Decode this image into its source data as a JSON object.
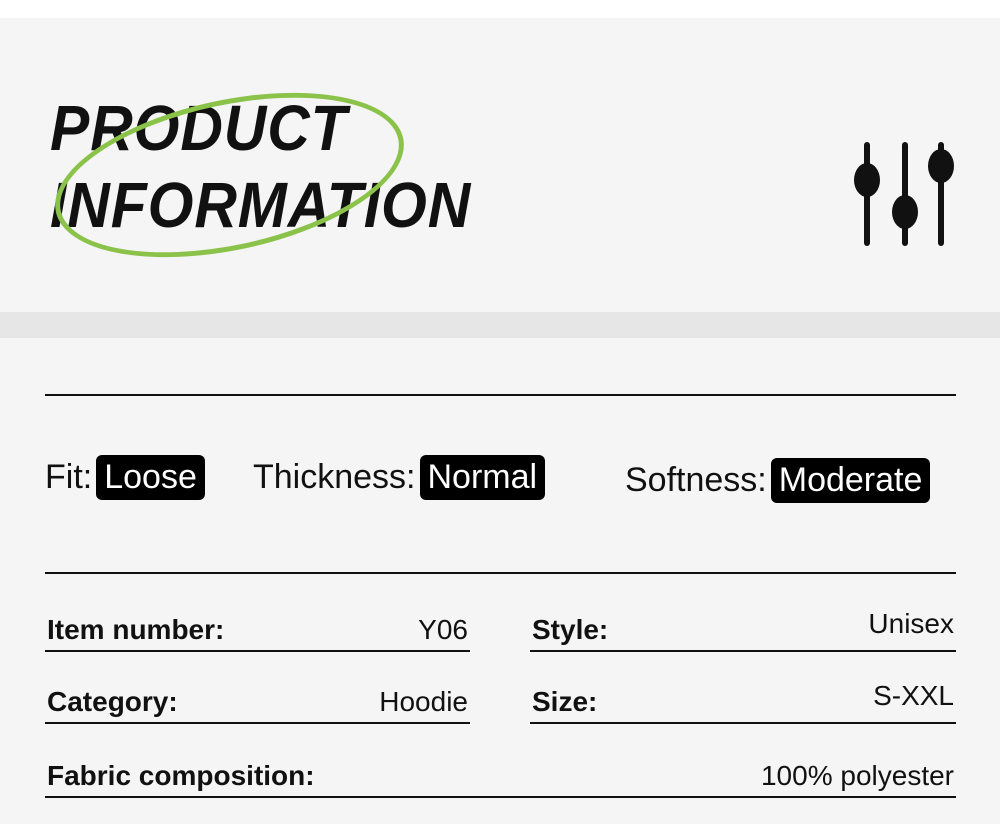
{
  "header": {
    "title_line1": "PRODUCT",
    "title_line2": "INFORMATION",
    "icon": "sliders-icon",
    "accent_color": "#8bc34a"
  },
  "attributes": [
    {
      "label": "Fit:",
      "value": "Loose"
    },
    {
      "label": "Thickness:",
      "value": "Normal"
    },
    {
      "label": "Softness:",
      "value": "Moderate"
    }
  ],
  "details": [
    {
      "label": "Item number:",
      "value": "Y06"
    },
    {
      "label": "Style:",
      "value": "Unisex"
    },
    {
      "label": "Category:",
      "value": "Hoodie"
    },
    {
      "label": "Size:",
      "value": "S-XXL"
    },
    {
      "label": "Fabric composition:",
      "value": "100% polyester"
    }
  ]
}
